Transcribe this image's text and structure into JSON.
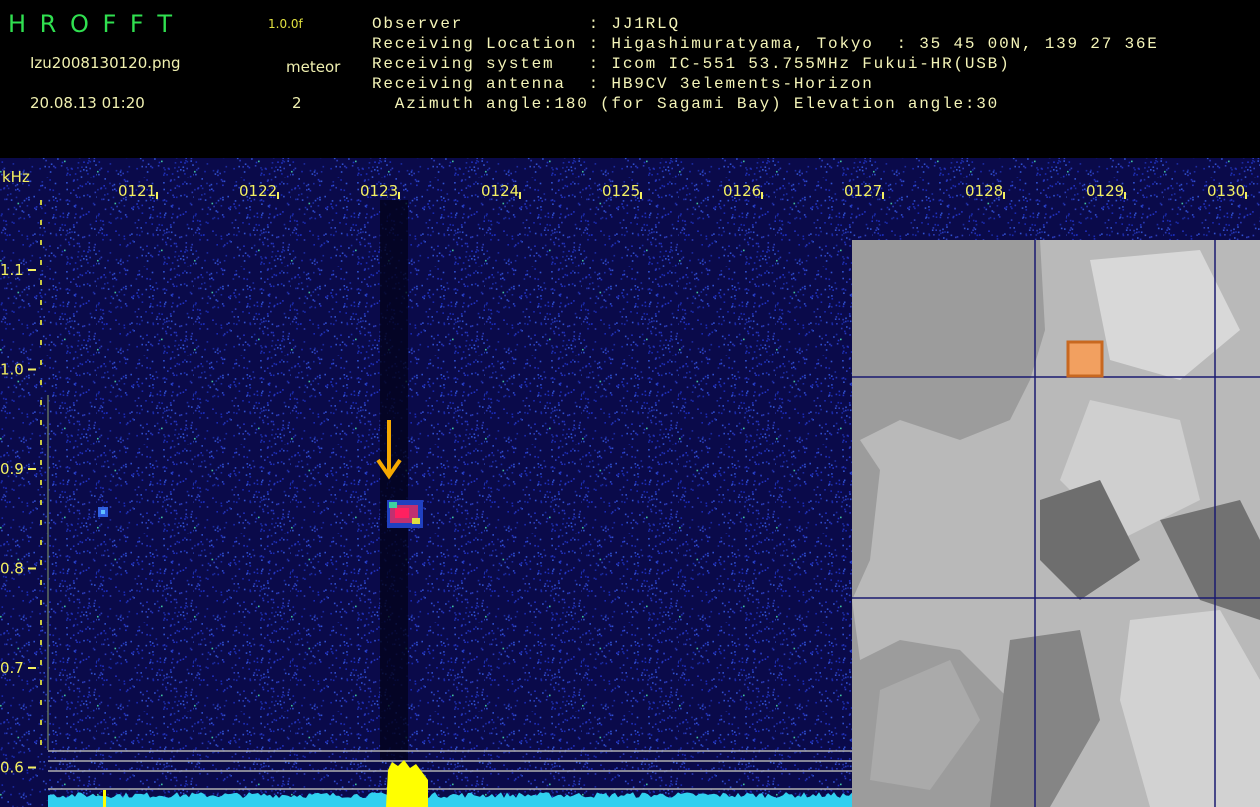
{
  "header": {
    "app": "H R O F F T",
    "version": "1.0.0f",
    "file": "Izu2008130120.png",
    "mode": "meteor",
    "datetime": "20.08.13 01:20",
    "count": "2",
    "info": [
      "Observer           : JJ1RLQ",
      "Receiving Location : Higashimuratyama, Tokyo  : 35 45 00N, 139 27 36E",
      "Receiving system   : Icom IC-551 53.755MHz Fukui-HR(USB)",
      "Receiving antenna  : HB9CV 3elements-Horizon",
      "  Azimuth angle:180 (for Sagami Bay) Elevation angle:30"
    ]
  },
  "time_axis": [
    "0121",
    "0122",
    "0123",
    "0124",
    "0125",
    "0126",
    "0127",
    "0128",
    "0129",
    "0130"
  ],
  "freq_axis": {
    "unit": "kHz",
    "labels": [
      "1.1",
      "1.0",
      "0.9",
      "0.8",
      "0.7",
      "0.6"
    ]
  }
}
